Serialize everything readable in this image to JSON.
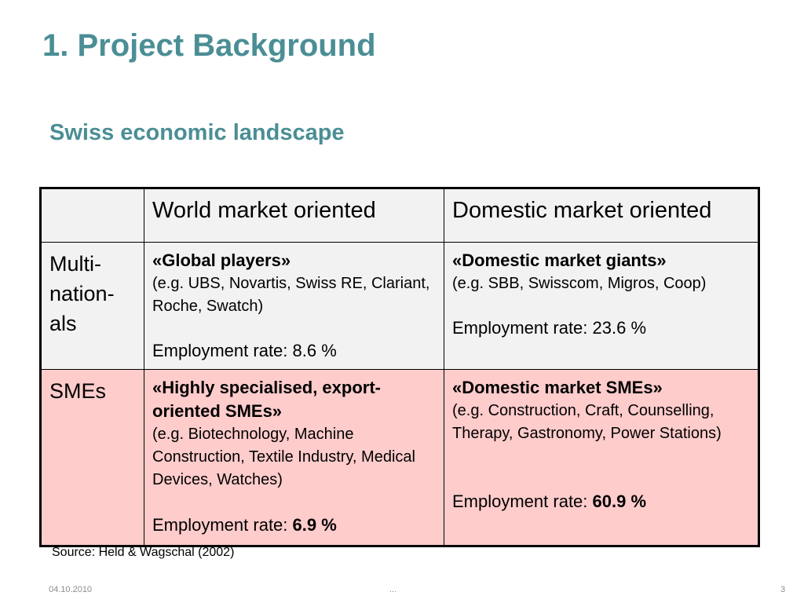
{
  "slide": {
    "title": "1. Project Background",
    "subtitle": "Swiss economic landscape"
  },
  "table": {
    "columns": [
      "",
      "World market oriented",
      "Domestic market oriented"
    ],
    "rows": [
      {
        "label": "Multi-\nnation-\nals",
        "world": {
          "heading": "«Global players»",
          "examples": "(e.g. UBS, Novartis, Swiss RE, Clariant, Roche, Swatch)",
          "employment_label": "Employment rate: 8.6 %",
          "employment_value": ""
        },
        "domestic": {
          "heading": "«Domestic market giants»",
          "examples": "(e.g. SBB, Swisscom, Migros, Coop)",
          "employment_label": "Employment rate: 23.6 %",
          "employment_value": ""
        }
      },
      {
        "label": "SMEs",
        "world": {
          "heading": "«Highly specialised, export-oriented SMEs»",
          "examples": "(e.g. Biotechnology, Machine Construction, Textile Industry, Medical Devices, Watches)",
          "employment_label": "Employment rate: ",
          "employment_value": "6.9 %"
        },
        "domestic": {
          "heading": "«Domestic market SMEs»",
          "examples": "(e.g. Construction, Craft, Counselling, Therapy, Gastronomy, Power Stations)",
          "employment_label": "Employment rate: ",
          "employment_value": "60.9 %"
        }
      }
    ]
  },
  "source": "Source: Held & Wagschal (2002)",
  "footer": {
    "date": "04.10.2010",
    "center": "...",
    "page": "3"
  },
  "colors": {
    "title": "#4b8e95",
    "header_bg": "#f2f2f2",
    "sme_row_bg": "#ffcccc"
  }
}
